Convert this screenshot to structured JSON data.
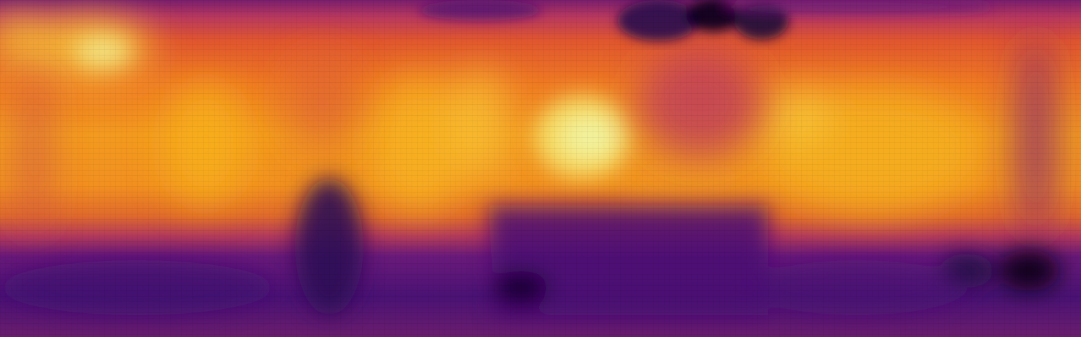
{
  "image": {
    "kind": "depth-heatmap",
    "colormap": "inferno",
    "palette": {
      "darkest": "#0d0316",
      "dark_purple": "#3b0f70",
      "purple": "#6a1a7a",
      "magenta": "#a8326e",
      "red_orange": "#d4503e",
      "orange": "#ef7a23",
      "amber": "#f7a21a",
      "yellow": "#f5d94a",
      "pale_yellow": "#f2f3a0"
    }
  }
}
